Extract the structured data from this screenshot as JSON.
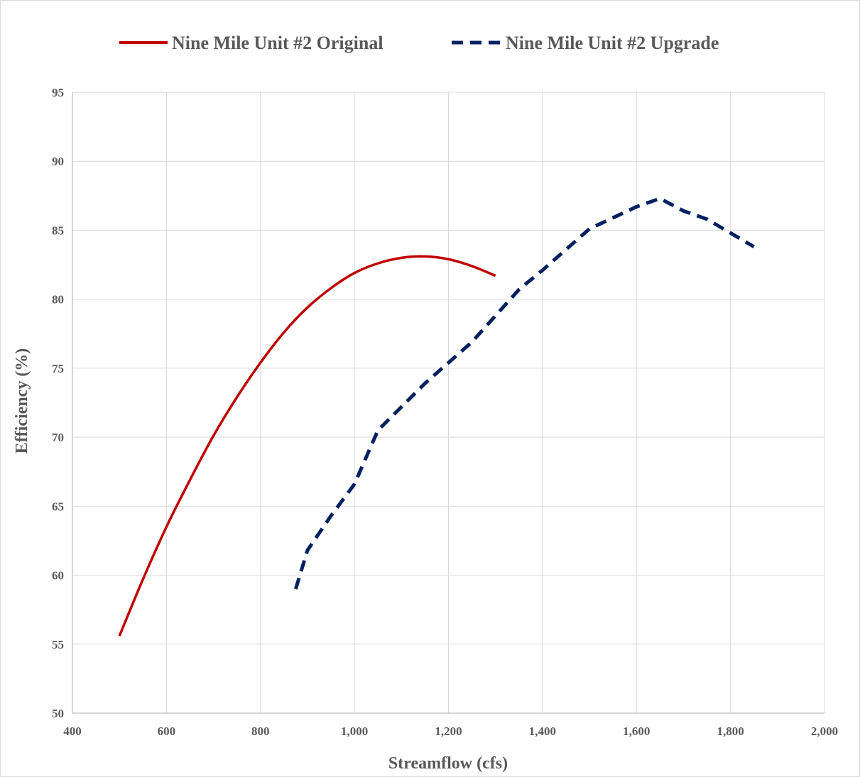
{
  "chart_data": {
    "type": "line",
    "title": "",
    "xlabel": "Streamflow (cfs)",
    "ylabel": "Efficiency (%)",
    "xlim": [
      400,
      2000
    ],
    "ylim": [
      50,
      95
    ],
    "x_ticks": [
      400,
      600,
      800,
      1000,
      1200,
      1400,
      1600,
      1800,
      2000
    ],
    "x_tick_labels": [
      "400",
      "600",
      "800",
      "1,000",
      "1,200",
      "1,400",
      "1,600",
      "1,800",
      "2,000"
    ],
    "y_ticks": [
      50,
      55,
      60,
      65,
      70,
      75,
      80,
      85,
      90,
      95
    ],
    "y_tick_labels": [
      "50",
      "55",
      "60",
      "65",
      "70",
      "75",
      "80",
      "85",
      "90",
      "95"
    ],
    "grid": true,
    "legend_position": "top",
    "series": [
      {
        "name": "Nine Mile Unit #2 Original",
        "color": "#c00000",
        "style": "solid",
        "x": [
          500,
          550,
          600,
          650,
          700,
          750,
          800,
          850,
          900,
          950,
          1000,
          1050,
          1100,
          1150,
          1200,
          1250,
          1300
        ],
        "y": [
          55.6,
          59.7,
          63.5,
          66.9,
          70.1,
          72.9,
          75.4,
          77.6,
          79.4,
          80.8,
          81.9,
          82.6,
          83.0,
          83.1,
          82.9,
          82.4,
          81.7
        ]
      },
      {
        "name": "Nine Mile Unit #2 Upgrade",
        "color": "#002060",
        "style": "dashed",
        "x": [
          875,
          900,
          950,
          1000,
          1050,
          1100,
          1150,
          1200,
          1250,
          1300,
          1350,
          1400,
          1450,
          1500,
          1550,
          1600,
          1650,
          1700,
          1750,
          1800,
          1850
        ],
        "y": [
          59,
          61.8,
          64.3,
          66.6,
          70.5,
          72.2,
          73.9,
          75.4,
          76.9,
          78.8,
          80.7,
          82.1,
          83.6,
          85.1,
          85.9,
          86.7,
          87.3,
          86.4,
          85.8,
          84.8,
          83.8
        ]
      }
    ]
  }
}
